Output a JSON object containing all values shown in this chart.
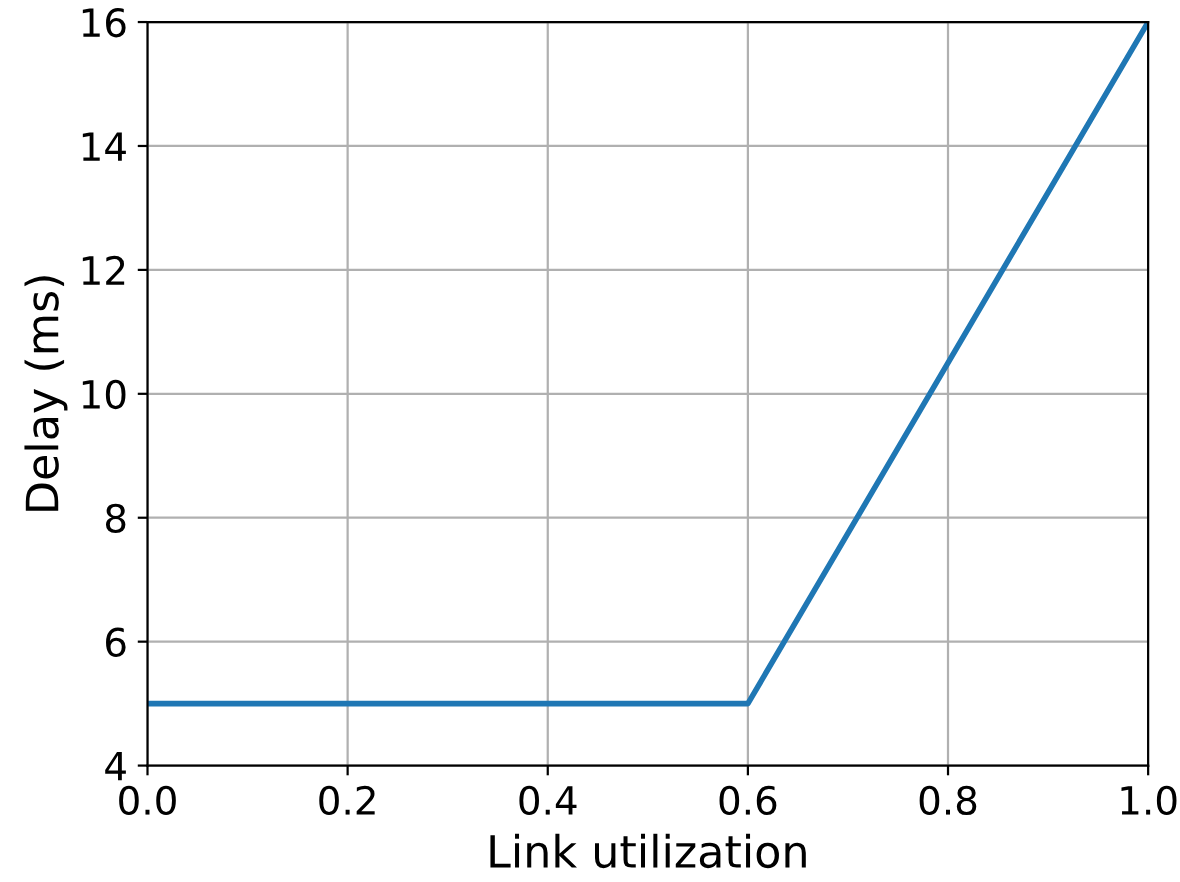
{
  "chart_data": {
    "type": "line",
    "xlabel": "Link utilization",
    "ylabel": "Delay (ms)",
    "x": [
      0.0,
      0.6,
      1.0
    ],
    "series": [
      {
        "color": "#1f77b4",
        "values": [
          5,
          5,
          16
        ]
      }
    ],
    "xlim": [
      0.0,
      1.0
    ],
    "xticks": [
      {
        "value": 0.0,
        "label": "0.0"
      },
      {
        "value": 0.2,
        "label": "0.2"
      },
      {
        "value": 0.4,
        "label": "0.4"
      },
      {
        "value": 0.6,
        "label": "0.6"
      },
      {
        "value": 0.8,
        "label": "0.8"
      },
      {
        "value": 1.0,
        "label": "1.0"
      }
    ],
    "ylim": [
      4,
      16
    ],
    "yticks": [
      4,
      6,
      8,
      10,
      12,
      14,
      16
    ],
    "grid": true,
    "marker": "none",
    "line_style": "solid"
  }
}
